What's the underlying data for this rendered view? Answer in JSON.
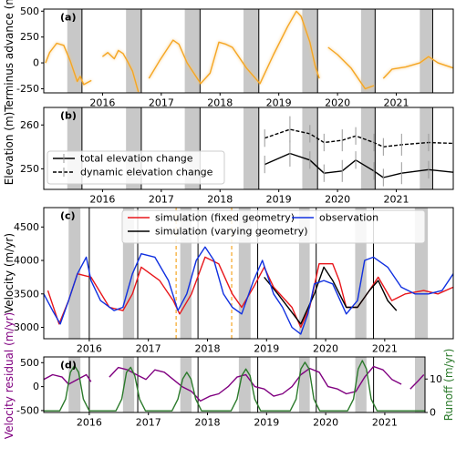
{
  "chart_data": [
    {
      "type": "line",
      "panel_label": "(a)",
      "ylabel": "Terminus advance (m)",
      "xlim": [
        2015.0,
        2021.97
      ],
      "xticks": [
        2016,
        2017,
        2018,
        2019,
        2020,
        2021
      ],
      "ylim": [
        -290,
        520
      ],
      "yticks": [
        -250,
        0,
        250,
        500
      ],
      "shaded_periods": [
        [
          2015.4,
          2015.65
        ],
        [
          2016.4,
          2016.66
        ],
        [
          2017.4,
          2017.66
        ],
        [
          2018.4,
          2018.66
        ],
        [
          2019.4,
          2019.66
        ],
        [
          2020.4,
          2020.64
        ],
        [
          2021.4,
          2021.62
        ]
      ],
      "shade_color": "#c8c8c8",
      "vertical_lines": [
        2015.65,
        2016.66,
        2017.66,
        2018.66,
        2019.66,
        2020.64,
        2021.62
      ],
      "series": [
        {
          "color": "#f5a623",
          "x": [
            2015.03,
            2015.1,
            2015.22,
            2015.34,
            2015.45,
            2015.57,
            2015.62,
            2015.68,
            2015.81,
            2015.9,
            2016.0,
            2016.09,
            2016.2,
            2016.27,
            2016.35,
            2016.43,
            2016.51,
            2016.61,
            2016.7,
            2016.79,
            2016.97,
            2017.2,
            2017.3,
            2017.44,
            2017.67,
            2017.83,
            2017.98,
            2018.1,
            2018.21,
            2018.45,
            2018.68,
            2018.91,
            2019.15,
            2019.3,
            2019.38,
            2019.53,
            2019.62,
            2019.69,
            2019.75,
            2019.84,
            2020.0,
            2020.23,
            2020.47,
            2020.62,
            2020.7,
            2020.78,
            2020.93,
            2021.16,
            2021.4,
            2021.55,
            2021.71,
            2021.97
          ],
          "values": [
            0,
            100,
            190,
            170,
            20,
            -180,
            -130,
            -210,
            -170,
            null,
            60,
            100,
            40,
            120,
            90,
            10,
            -80,
            -280,
            null,
            -150,
            20,
            220,
            180,
            0,
            -200,
            -100,
            200,
            180,
            150,
            -50,
            -200,
            80,
            350,
            500,
            450,
            200,
            -30,
            -150,
            null,
            150,
            80,
            -50,
            -250,
            -220,
            null,
            -150,
            -60,
            -40,
            0,
            60,
            0,
            -50
          ]
        }
      ]
    },
    {
      "type": "errorbar",
      "panel_label": "(b)",
      "ylabel": "Elevation (m)",
      "xlim": [
        2015.0,
        2021.97
      ],
      "xticks": [
        2016,
        2017,
        2018,
        2019,
        2020,
        2021
      ],
      "ylim": [
        245.3,
        264
      ],
      "yticks": [
        250,
        260
      ],
      "shaded_periods": [
        [
          2015.4,
          2015.65
        ],
        [
          2016.4,
          2016.66
        ],
        [
          2017.4,
          2017.66
        ],
        [
          2018.4,
          2018.66
        ],
        [
          2019.4,
          2019.66
        ],
        [
          2020.4,
          2020.64
        ],
        [
          2021.4,
          2021.62
        ]
      ],
      "shade_color": "#c8c8c8",
      "vertical_lines": [
        2015.65,
        2016.66,
        2017.66,
        2018.66,
        2019.66,
        2020.64,
        2021.62
      ],
      "legend": "left",
      "series": [
        {
          "name": "total elevation change",
          "color": "#000000",
          "linestyle": "solid",
          "x": [
            2018.76,
            2019.19,
            2019.53,
            2019.77,
            2020.08,
            2020.31,
            2020.62,
            2020.78,
            2021.09,
            2021.55,
            2021.97
          ],
          "values": [
            251,
            253.5,
            252,
            249,
            249.5,
            252,
            249.5,
            248,
            249,
            249.8,
            249.2
          ],
          "errors": [
            2,
            3,
            2,
            2,
            2.5,
            2,
            2,
            2,
            2.5,
            2,
            2
          ]
        },
        {
          "name": "dynamic elevation change",
          "color": "#000000",
          "linestyle": "dashed",
          "x": [
            2018.76,
            2019.19,
            2019.53,
            2019.77,
            2020.08,
            2020.31,
            2020.62,
            2020.78,
            2021.09,
            2021.55,
            2021.97
          ],
          "values": [
            257,
            259,
            258,
            256,
            256.5,
            257.5,
            256,
            255,
            255.5,
            256,
            255.8
          ],
          "errors": [
            2,
            3,
            2,
            2,
            2.5,
            2,
            2,
            2,
            2.5,
            2,
            2
          ]
        }
      ]
    },
    {
      "type": "line",
      "panel_label": "(c)",
      "ylabel": "Velocity (m/yr)",
      "xlim": [
        2015.23,
        2022.16
      ],
      "xticks": [
        2016,
        2017,
        2018,
        2019,
        2020,
        2021
      ],
      "ylim": [
        2830,
        4790
      ],
      "yticks": [
        3000,
        3500,
        4000,
        4500
      ],
      "shaded_periods": [
        [
          2015.65,
          2015.85
        ],
        [
          2016.57,
          2016.76
        ],
        [
          2017.54,
          2017.73
        ],
        [
          2018.53,
          2018.73
        ],
        [
          2019.55,
          2019.73
        ],
        [
          2020.5,
          2020.69
        ],
        [
          2021.51,
          2021.73
        ]
      ],
      "shade_color": "#c8c8c8",
      "vertical_lines": [
        2016.0,
        2016.82,
        2017.84,
        2018.85,
        2019.84,
        2020.81
      ],
      "dashed_lines": [
        2017.47,
        2018.41
      ],
      "dashed_color": "#f5a623",
      "legend": "upper",
      "series": [
        {
          "name": "simulation (fixed geometry)",
          "color": "#e8161b",
          "x": [
            2015.3,
            2015.49,
            2015.65,
            2015.8,
            2016.03,
            2016.34,
            2016.57,
            2016.73,
            2016.88,
            2017.19,
            2017.42,
            2017.53,
            2017.73,
            2017.96,
            2018.19,
            2018.42,
            2018.58,
            2018.78,
            2018.96,
            2019.12,
            2019.43,
            2019.58,
            2019.73,
            2019.89,
            2020.12,
            2020.23,
            2020.35,
            2020.54,
            2020.74,
            2020.89,
            2021.12,
            2021.35,
            2021.66,
            2021.9,
            2022.16
          ],
          "values": [
            3550,
            3050,
            3400,
            3800,
            3750,
            3300,
            3250,
            3500,
            3900,
            3700,
            3400,
            3200,
            3500,
            4050,
            3950,
            3500,
            3300,
            3600,
            3900,
            3600,
            3300,
            3000,
            3300,
            3950,
            3950,
            3700,
            3300,
            3300,
            3550,
            3750,
            3400,
            3500,
            3550,
            3500,
            3600
          ]
        },
        {
          "name": "simulation (varying geometry)",
          "color": "#000000",
          "x": [
            2018.96,
            2019.19,
            2019.58,
            2019.81,
            2019.97,
            2020.12,
            2020.35,
            2020.54,
            2020.74,
            2020.89,
            2021.05,
            2021.2
          ],
          "values": [
            3750,
            3500,
            3050,
            3500,
            3900,
            3700,
            3300,
            3300,
            3550,
            3700,
            3400,
            3250
          ]
        },
        {
          "name": "observation",
          "color": "#1030e0",
          "x": [
            2015.23,
            2015.38,
            2015.51,
            2015.65,
            2015.8,
            2015.95,
            2016.03,
            2016.19,
            2016.42,
            2016.57,
            2016.73,
            2016.88,
            2017.11,
            2017.34,
            2017.5,
            2017.65,
            2017.81,
            2017.96,
            2018.11,
            2018.27,
            2018.42,
            2018.58,
            2018.78,
            2018.93,
            2019.12,
            2019.27,
            2019.43,
            2019.58,
            2019.7,
            2019.81,
            2019.97,
            2020.12,
            2020.35,
            2020.54,
            2020.66,
            2020.81,
            2021.05,
            2021.28,
            2021.51,
            2021.74,
            2021.97,
            2022.16
          ],
          "values": [
            3500,
            3250,
            3050,
            3400,
            3800,
            4050,
            3700,
            3400,
            3250,
            3300,
            3800,
            4100,
            4050,
            3700,
            3250,
            3500,
            4000,
            4200,
            4000,
            3500,
            3300,
            3200,
            3700,
            4000,
            3500,
            3300,
            3000,
            2900,
            3200,
            3650,
            3700,
            3650,
            3200,
            3400,
            4000,
            4050,
            3900,
            3600,
            3500,
            3500,
            3550,
            3800
          ]
        }
      ]
    },
    {
      "type": "dual_line",
      "panel_label": "(d)",
      "ylabel": "Velocity residual (m/yr)",
      "y2label": "Runoff (m/yr)",
      "xlim": [
        2015.23,
        2021.68
      ],
      "xticks": [
        2016,
        2017,
        2018,
        2019,
        2020,
        2021
      ],
      "ylim": [
        -540,
        620
      ],
      "yticks": [
        -500,
        0,
        500
      ],
      "y2lim": [
        0,
        16.6
      ],
      "y2ticks": [
        0,
        10
      ],
      "shaded_periods": [
        [
          2015.65,
          2015.85
        ],
        [
          2016.57,
          2016.76
        ],
        [
          2017.54,
          2017.73
        ],
        [
          2018.53,
          2018.73
        ],
        [
          2019.55,
          2019.73
        ],
        [
          2020.5,
          2020.69
        ],
        [
          2021.51,
          2021.73
        ]
      ],
      "shade_color": "#c8c8c8",
      "vertical_lines": [
        2016.0,
        2016.82,
        2017.84,
        2018.85,
        2019.84,
        2020.81
      ],
      "series": [
        {
          "color": "#800080",
          "axis": "y",
          "x": [
            2015.23,
            2015.38,
            2015.54,
            2015.65,
            2015.8,
            2015.95,
            2016.03,
            2016.15,
            2016.34,
            2016.49,
            2016.65,
            2016.8,
            2016.96,
            2017.11,
            2017.27,
            2017.42,
            2017.57,
            2017.73,
            2017.88,
            2018.04,
            2018.19,
            2018.35,
            2018.5,
            2018.65,
            2018.8,
            2018.96,
            2019.12,
            2019.27,
            2019.43,
            2019.58,
            2019.73,
            2019.89,
            2020.04,
            2020.2,
            2020.35,
            2020.51,
            2020.66,
            2020.81,
            2020.97,
            2021.12,
            2021.28,
            2021.35,
            2021.43,
            2021.55,
            2021.66
          ],
          "values": [
            150,
            250,
            200,
            50,
            150,
            250,
            100,
            null,
            200,
            400,
            350,
            250,
            150,
            350,
            300,
            150,
            0,
            -100,
            -300,
            -200,
            -150,
            0,
            200,
            250,
            0,
            -50,
            -200,
            -150,
            0,
            250,
            380,
            300,
            0,
            -50,
            -150,
            -100,
            200,
            420,
            350,
            150,
            50,
            null,
            -50,
            100,
            250
          ]
        },
        {
          "color": "#2b7a2b",
          "axis": "y2",
          "x": [
            2015.23,
            2015.5,
            2015.6,
            2015.68,
            2015.75,
            2015.82,
            2015.9,
            2016.0,
            2016.45,
            2016.55,
            2016.63,
            2016.7,
            2016.77,
            2016.85,
            2016.95,
            2017.4,
            2017.5,
            2017.58,
            2017.65,
            2017.72,
            2017.8,
            2017.9,
            2018.4,
            2018.5,
            2018.58,
            2018.65,
            2018.72,
            2018.8,
            2018.9,
            2019.4,
            2019.5,
            2019.58,
            2019.65,
            2019.72,
            2019.8,
            2019.9,
            2020.37,
            2020.47,
            2020.55,
            2020.62,
            2020.69,
            2020.77,
            2020.87,
            2021.68
          ],
          "values": [
            0.5,
            0.5,
            4,
            12,
            14,
            12,
            4,
            0.5,
            0.5,
            4,
            12,
            13.5,
            11,
            4,
            0.5,
            0.5,
            4,
            10,
            12,
            10,
            4,
            0.5,
            0.5,
            4,
            11,
            13,
            11,
            4,
            0.5,
            0.5,
            4,
            13,
            15,
            13,
            4,
            0.5,
            0.5,
            4,
            13,
            15.5,
            13,
            4,
            0.5,
            0.5
          ]
        }
      ]
    }
  ]
}
